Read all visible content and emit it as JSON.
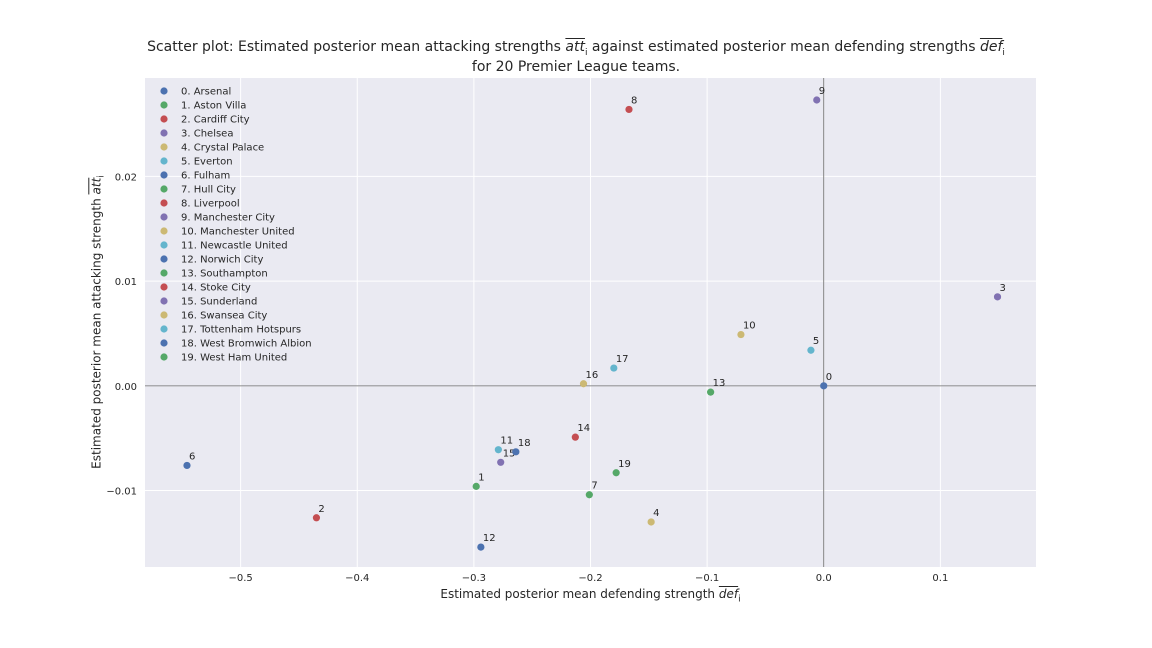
{
  "chart_data": {
    "type": "scatter",
    "title_line1_prefix": "Scatter plot: Estimated posterior mean attacking strengths",
    "title_line1_middle": "against estimated posterior mean defending strengths",
    "title_line2": "for 20 Premier League teams.",
    "att_symbol": "att",
    "def_symbol": "def",
    "sub_i": "i",
    "xlabel": "Estimated posterior mean defending strength",
    "ylabel": "Estimated posterior mean attacking strength",
    "xlim": [
      -0.582,
      0.182
    ],
    "ylim": [
      -0.0173,
      0.0294
    ],
    "xticks": [
      -0.5,
      -0.4,
      -0.3,
      -0.2,
      -0.1,
      0.0,
      0.1
    ],
    "xtick_labels": [
      "−0.5",
      "−0.4",
      "−0.3",
      "−0.2",
      "−0.1",
      "0.0",
      "0.1"
    ],
    "yticks": [
      -0.01,
      0.0,
      0.01,
      0.02
    ],
    "ytick_labels": [
      "−0.01",
      "0.00",
      "0.01",
      "0.02"
    ],
    "grid": true,
    "legend_position": "upper-left",
    "colors": [
      "#4c72b0",
      "#55a868",
      "#c44e52",
      "#8172b2",
      "#ccb974",
      "#64b5cd"
    ],
    "points": [
      {
        "label": "0",
        "team": "0. Arsenal",
        "x": 0.0,
        "y": 0.0
      },
      {
        "label": "1",
        "team": "1. Aston Villa",
        "x": -0.298,
        "y": -0.0096
      },
      {
        "label": "2",
        "team": "2. Cardiff City",
        "x": -0.435,
        "y": -0.0126
      },
      {
        "label": "3",
        "team": "3. Chelsea",
        "x": 0.149,
        "y": 0.0085
      },
      {
        "label": "4",
        "team": "4. Crystal Palace",
        "x": -0.148,
        "y": -0.013
      },
      {
        "label": "5",
        "team": "5. Everton",
        "x": -0.011,
        "y": 0.0034
      },
      {
        "label": "6",
        "team": "6. Fulham",
        "x": -0.546,
        "y": -0.0076
      },
      {
        "label": "7",
        "team": "7. Hull City",
        "x": -0.201,
        "y": -0.0104
      },
      {
        "label": "8",
        "team": "8. Liverpool",
        "x": -0.167,
        "y": 0.0264
      },
      {
        "label": "9",
        "team": "9. Manchester City",
        "x": -0.006,
        "y": 0.0273
      },
      {
        "label": "10",
        "team": "10. Manchester United",
        "x": -0.071,
        "y": 0.0049
      },
      {
        "label": "11",
        "team": "11. Newcastle United",
        "x": -0.279,
        "y": -0.0061
      },
      {
        "label": "12",
        "team": "12. Norwich City",
        "x": -0.294,
        "y": -0.0154
      },
      {
        "label": "13",
        "team": "13. Southampton",
        "x": -0.097,
        "y": -0.0006
      },
      {
        "label": "14",
        "team": "14. Stoke City",
        "x": -0.213,
        "y": -0.0049
      },
      {
        "label": "15",
        "team": "15. Sunderland",
        "x": -0.277,
        "y": -0.0073
      },
      {
        "label": "16",
        "team": "16. Swansea City",
        "x": -0.206,
        "y": 0.0002
      },
      {
        "label": "17",
        "team": "17. Tottenham Hotspurs",
        "x": -0.18,
        "y": 0.0017
      },
      {
        "label": "18",
        "team": "18. West Bromwich Albion",
        "x": -0.264,
        "y": -0.0063
      },
      {
        "label": "19",
        "team": "19. West Ham United",
        "x": -0.178,
        "y": -0.0083
      }
    ]
  }
}
